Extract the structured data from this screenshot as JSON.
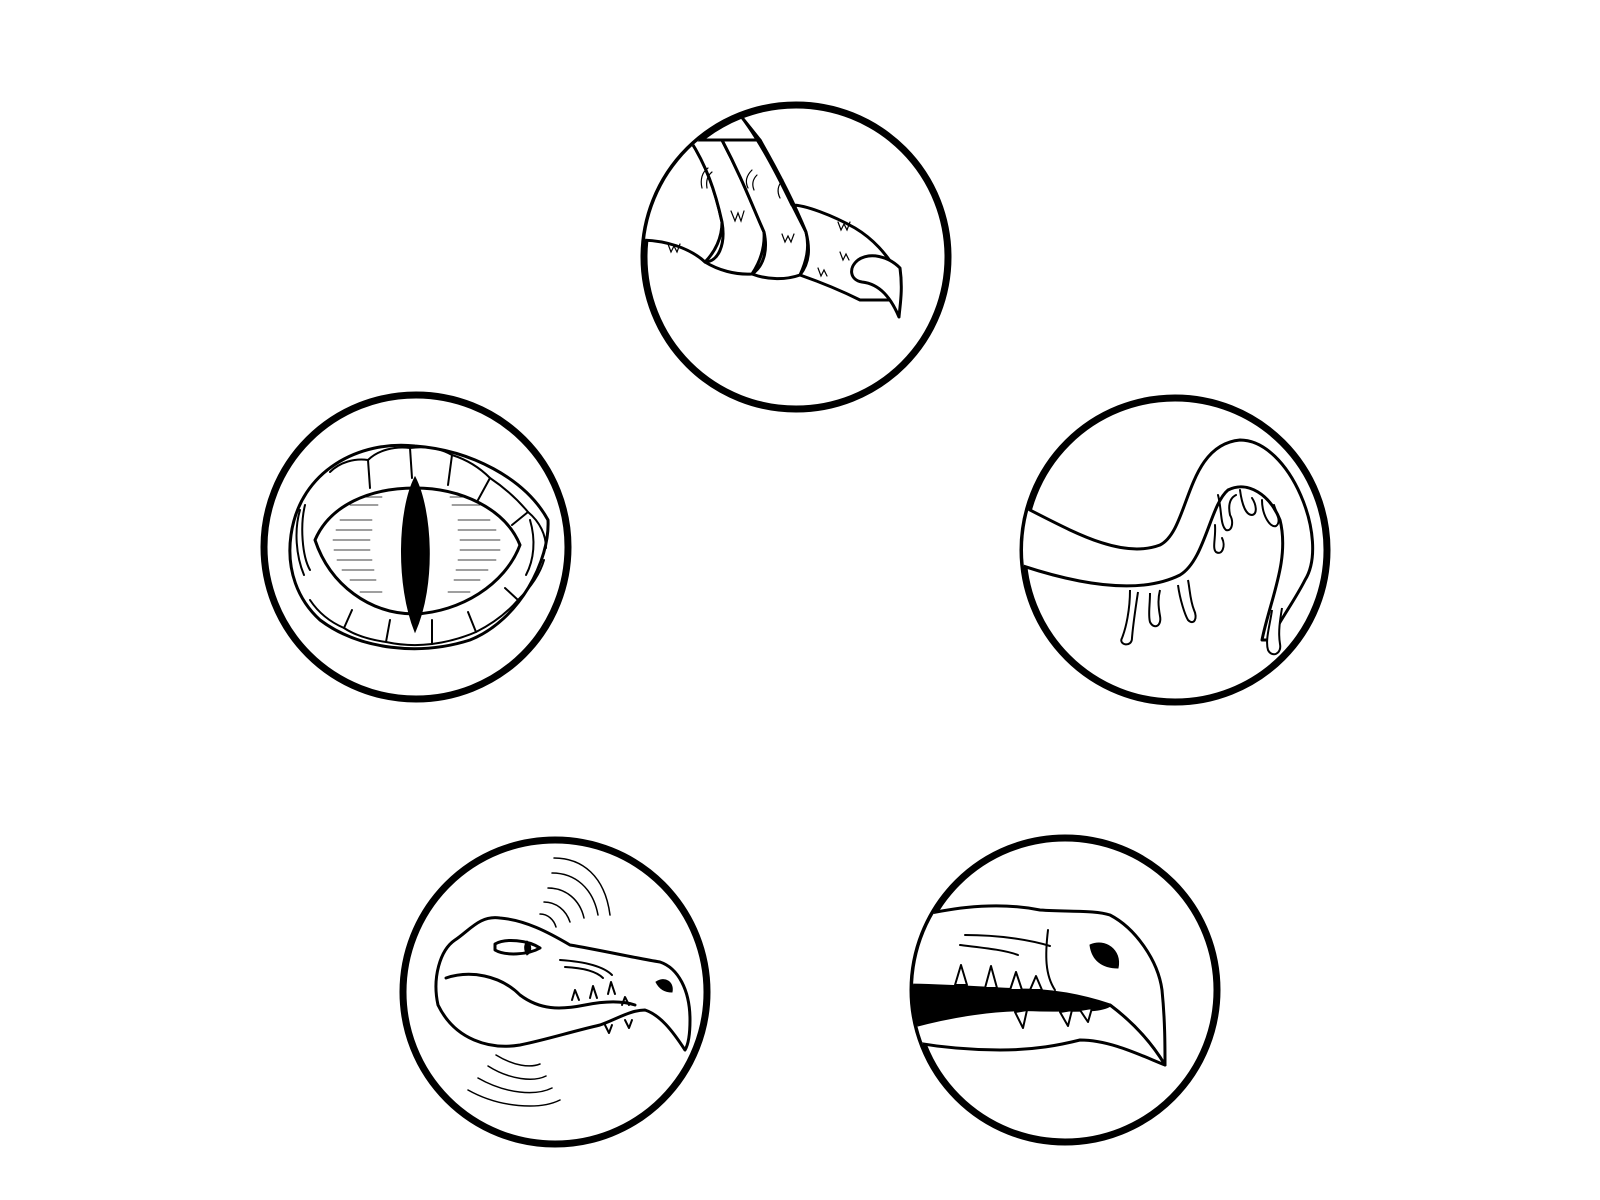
{
  "icons": [
    {
      "name": "dragon-claw-icon"
    },
    {
      "name": "dragon-eye-icon"
    },
    {
      "name": "dragon-tongue-icon"
    },
    {
      "name": "dragon-roar-icon"
    },
    {
      "name": "dragon-jaw-icon"
    }
  ],
  "colors": {
    "background": "#ffffff",
    "line": "#000000"
  }
}
